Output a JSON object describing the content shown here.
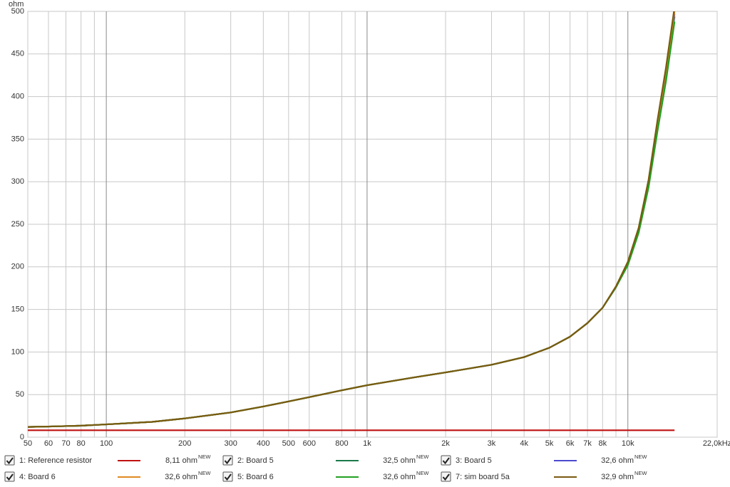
{
  "chart_data": {
    "type": "line",
    "y_label": "ohm",
    "xscale": "log",
    "grid": true,
    "xlim": [
      50,
      22000
    ],
    "ylim": [
      0,
      500
    ],
    "yticks": [
      0,
      50,
      100,
      150,
      200,
      250,
      300,
      350,
      400,
      450,
      500
    ],
    "xticks": [
      50,
      60,
      70,
      80,
      100,
      200,
      300,
      400,
      500,
      600,
      800,
      {
        "value": 1000,
        "label": "1k"
      },
      {
        "value": 2000,
        "label": "2k"
      },
      {
        "value": 3000,
        "label": "3k"
      },
      {
        "value": 4000,
        "label": "4k"
      },
      {
        "value": 5000,
        "label": "5k"
      },
      {
        "value": 6000,
        "label": "6k"
      },
      {
        "value": 7000,
        "label": "7k"
      },
      {
        "value": 8000,
        "label": "8k"
      },
      {
        "value": 10000,
        "label": "10k"
      },
      {
        "value": 22000,
        "label": "22,0kHz"
      }
    ],
    "x_minor_gridlines": [
      90,
      900,
      9000
    ],
    "x": [
      50,
      60,
      70,
      80,
      100,
      150,
      200,
      300,
      400,
      500,
      600,
      800,
      1000,
      1500,
      2000,
      3000,
      4000,
      5000,
      6000,
      7000,
      8000,
      9000,
      10000,
      11000,
      12000,
      13000,
      14000,
      15100
    ],
    "series": [
      {
        "name": "1: Reference resistor",
        "color": "#c01010",
        "readout": "8,11 ohm",
        "tag": "NEW",
        "values": [
          8.1,
          8.1,
          8.1,
          8.1,
          8.1,
          8.1,
          8.1,
          8.1,
          8.1,
          8.1,
          8.1,
          8.1,
          8.1,
          8.1,
          8.1,
          8.1,
          8.1,
          8.1,
          8.1,
          8.1,
          8.1,
          8.1,
          8.1,
          8.1,
          8.1,
          8.1,
          8.1,
          8.1
        ]
      },
      {
        "name": "2: Board 5",
        "color": "#1a7a4a",
        "readout": "32,5 ohm",
        "tag": "NEW",
        "values": [
          12,
          12.5,
          13,
          13.5,
          15,
          18,
          22,
          29,
          36,
          42,
          47,
          55,
          61,
          70,
          76,
          85,
          94,
          105,
          118,
          134,
          152,
          176,
          203,
          242,
          296,
          364,
          424,
          494
        ]
      },
      {
        "name": "3: Board 5",
        "color": "#4a4ad0",
        "readout": "32,6 ohm",
        "tag": "NEW",
        "values": [
          12,
          12.5,
          13,
          13.5,
          15,
          18,
          22,
          29,
          36,
          42,
          47,
          55,
          61,
          70,
          76,
          85,
          94,
          105,
          118,
          134,
          152,
          176,
          204,
          243,
          298,
          367,
          427,
          497
        ]
      },
      {
        "name": "4: Board 6",
        "color": "#e08a20",
        "readout": "32,6 ohm",
        "tag": "NEW",
        "values": [
          12,
          12.5,
          13,
          13.5,
          15,
          18,
          22,
          29,
          36,
          42,
          47,
          55,
          61,
          70,
          76,
          85,
          94,
          105,
          118,
          134,
          152,
          177,
          205,
          245,
          300,
          370,
          430,
          500
        ]
      },
      {
        "name": "5: Board 6",
        "color": "#22a022",
        "readout": "32,6 ohm",
        "tag": "NEW",
        "values": [
          12,
          12.5,
          13,
          13.5,
          15,
          18,
          22,
          29,
          36,
          42,
          47,
          55,
          61,
          70,
          76,
          85,
          94,
          105,
          118,
          134,
          152,
          176,
          202,
          240,
          293,
          360,
          418,
          488
        ]
      },
      {
        "name": "7: sim board 5a",
        "color": "#7a5a10",
        "readout": "32,9 ohm",
        "tag": "NEW",
        "values": [
          12,
          12.5,
          13,
          13.5,
          15,
          18,
          22,
          29,
          36,
          42,
          47,
          55,
          61,
          70,
          76,
          85,
          94,
          105,
          118,
          134,
          152,
          177,
          206,
          246,
          302,
          373,
          434,
          505
        ]
      }
    ]
  }
}
